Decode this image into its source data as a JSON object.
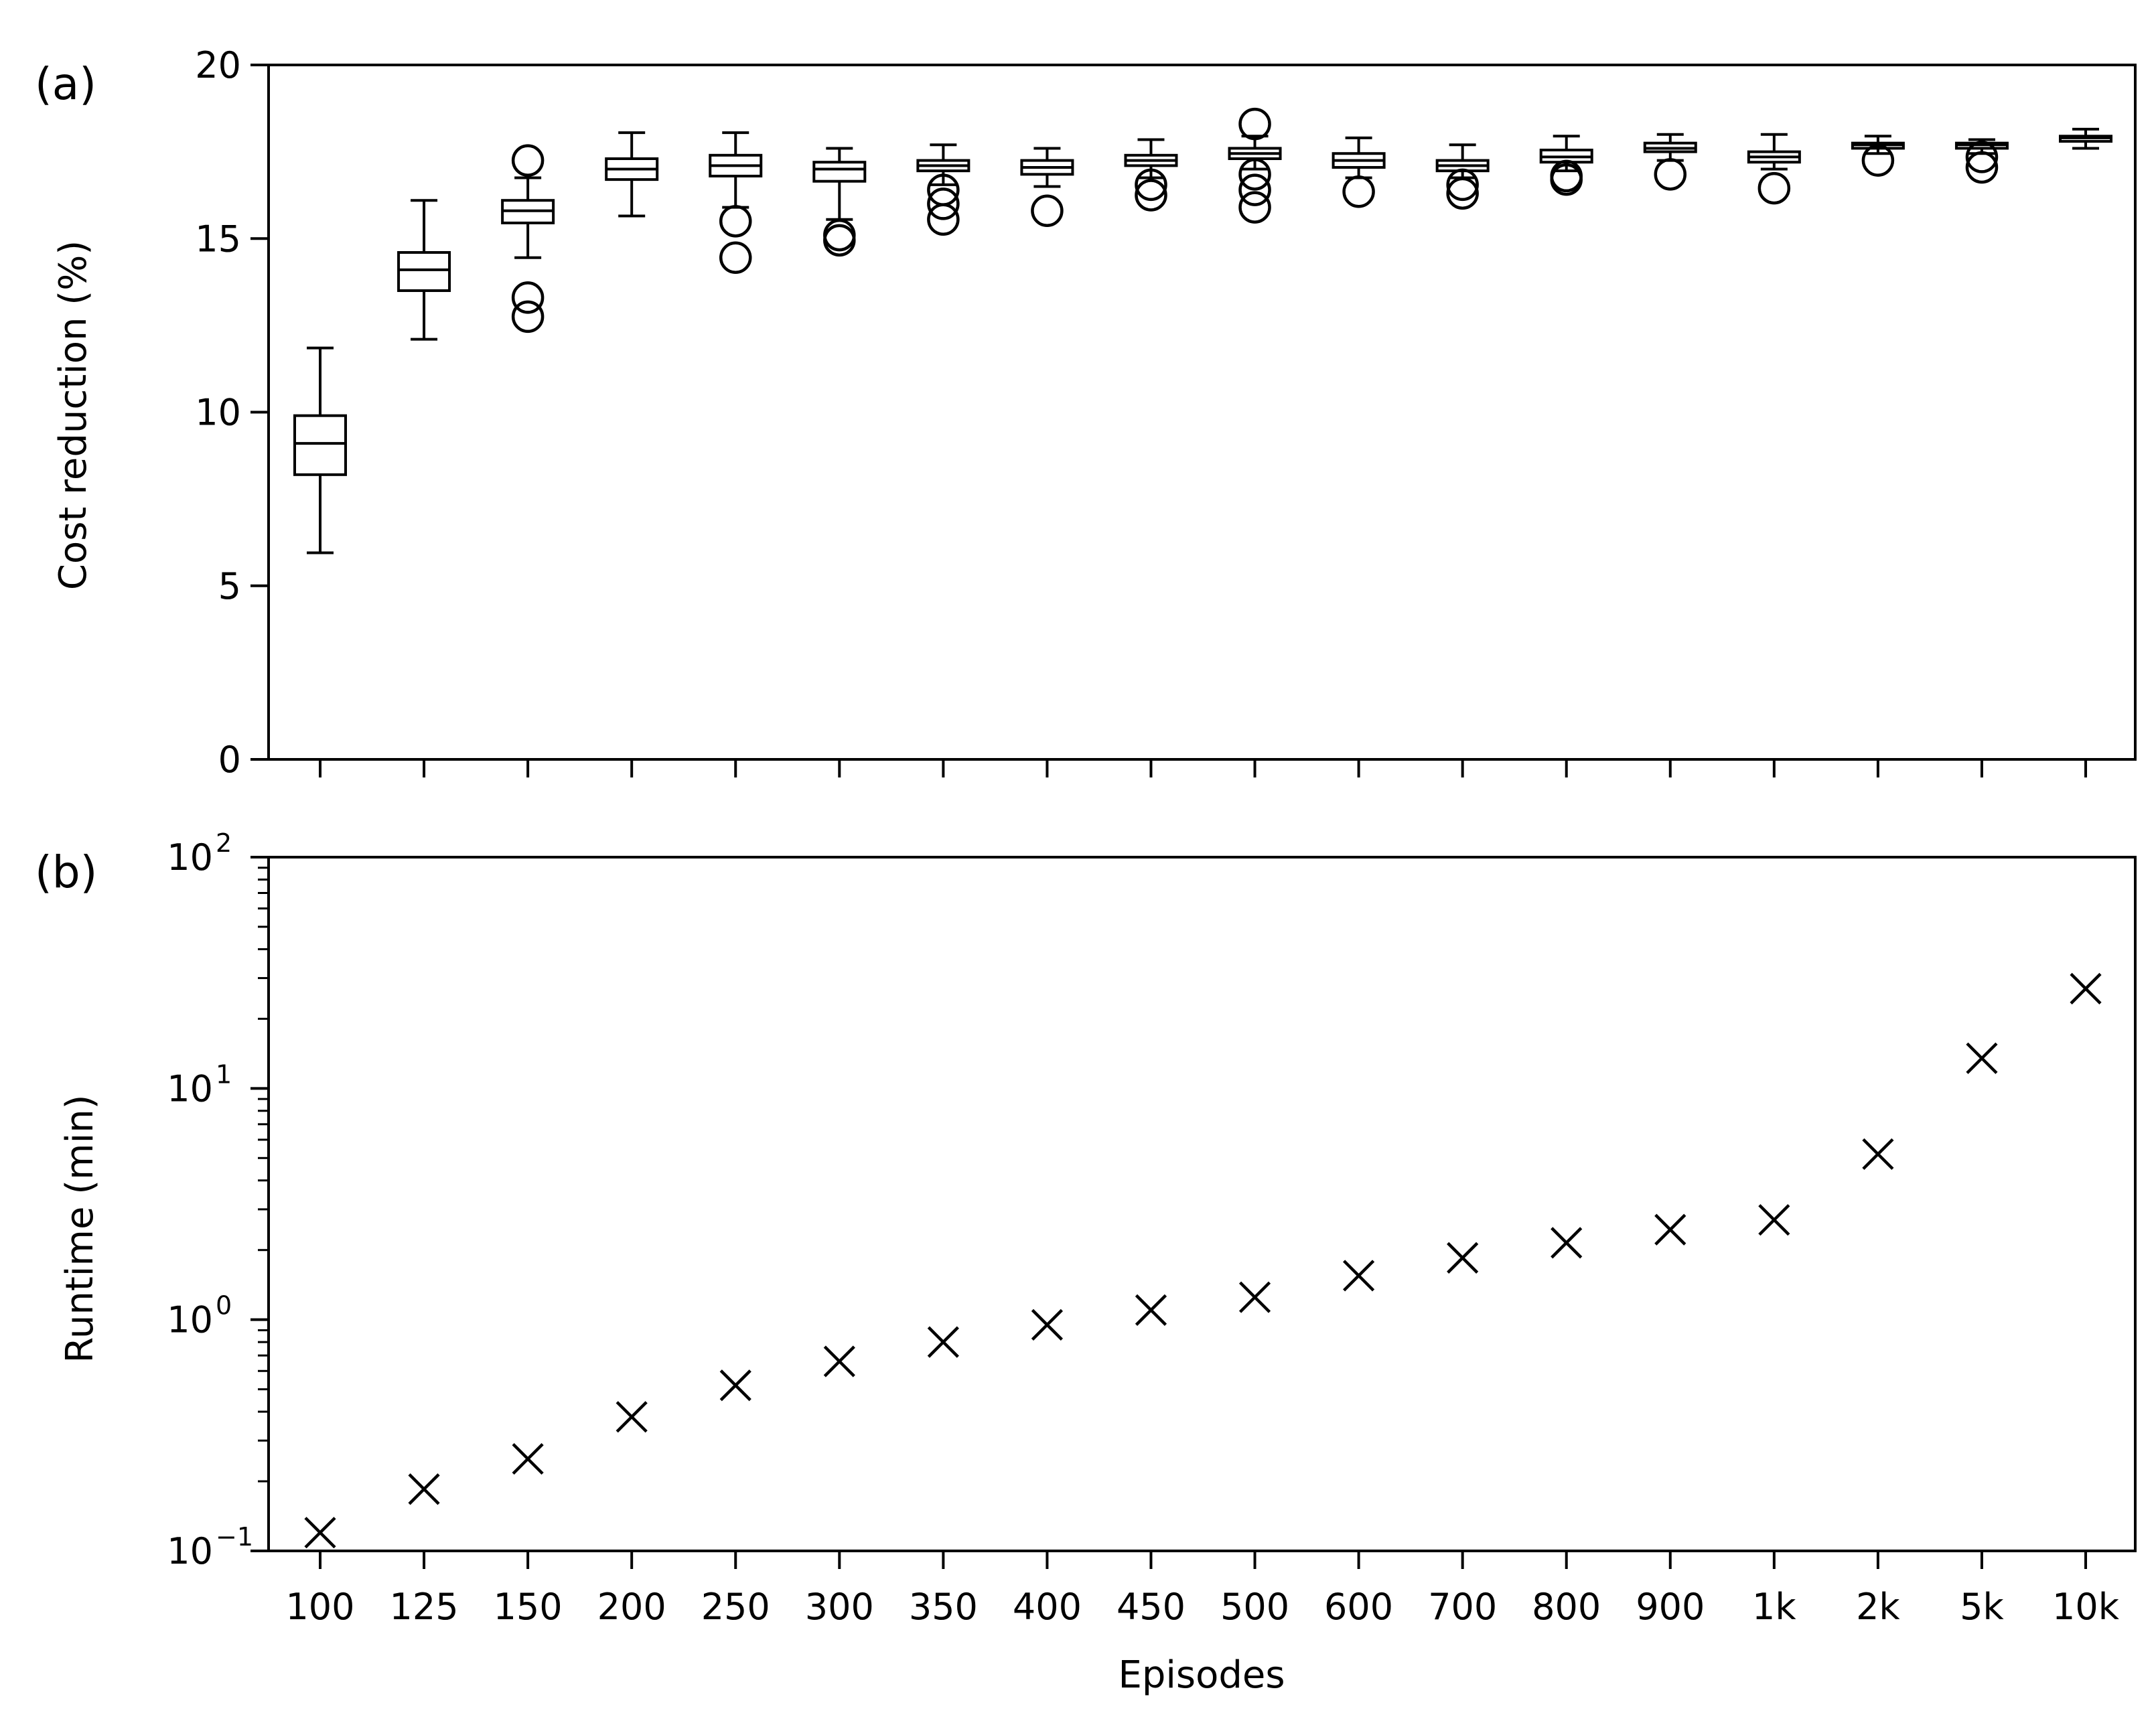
{
  "chart_data": [
    {
      "panel_label": "(a)",
      "type": "box",
      "xlabel": "",
      "ylabel": "Cost reduction (%)",
      "ylim": [
        0,
        20
      ],
      "yticks": [
        0,
        5,
        10,
        15,
        20
      ],
      "categories": [
        "100",
        "125",
        "150",
        "200",
        "250",
        "300",
        "350",
        "400",
        "450",
        "500",
        "600",
        "700",
        "800",
        "900",
        "1k",
        "2k",
        "5k",
        "10k"
      ],
      "boxes": [
        {
          "whislo": 5.95,
          "q1": 8.2,
          "med": 9.1,
          "q3": 9.9,
          "whishi": 11.85,
          "fliers": []
        },
        {
          "whislo": 12.1,
          "q1": 13.5,
          "med": 14.1,
          "q3": 14.6,
          "whishi": 16.1,
          "fliers": []
        },
        {
          "whislo": 14.45,
          "q1": 15.45,
          "med": 15.8,
          "q3": 16.1,
          "whishi": 16.75,
          "fliers": [
            17.25,
            13.3,
            12.75
          ]
        },
        {
          "whislo": 15.65,
          "q1": 16.7,
          "med": 17.0,
          "q3": 17.3,
          "whishi": 18.05,
          "fliers": []
        },
        {
          "whislo": 15.9,
          "q1": 16.8,
          "med": 17.1,
          "q3": 17.4,
          "whishi": 18.05,
          "fliers": [
            15.5,
            14.45
          ]
        },
        {
          "whislo": 15.55,
          "q1": 16.65,
          "med": 17.0,
          "q3": 17.2,
          "whishi": 17.6,
          "fliers": [
            15.1,
            14.95
          ]
        },
        {
          "whislo": 16.55,
          "q1": 16.95,
          "med": 17.1,
          "q3": 17.25,
          "whishi": 17.7,
          "fliers": [
            16.4,
            16.0,
            15.55
          ]
        },
        {
          "whislo": 16.5,
          "q1": 16.85,
          "med": 17.05,
          "q3": 17.25,
          "whishi": 17.6,
          "fliers": [
            15.8
          ]
        },
        {
          "whislo": 16.75,
          "q1": 17.1,
          "med": 17.25,
          "q3": 17.4,
          "whishi": 17.85,
          "fliers": [
            16.55,
            16.25
          ]
        },
        {
          "whislo": 17.0,
          "q1": 17.3,
          "med": 17.45,
          "q3": 17.6,
          "whishi": 17.95,
          "fliers": [
            18.3,
            16.85,
            16.4,
            15.9
          ]
        },
        {
          "whislo": 16.75,
          "q1": 17.05,
          "med": 17.25,
          "q3": 17.45,
          "whishi": 17.9,
          "fliers": [
            16.35
          ]
        },
        {
          "whislo": 16.75,
          "q1": 16.95,
          "med": 17.1,
          "q3": 17.25,
          "whishi": 17.7,
          "fliers": [
            16.55,
            16.3
          ]
        },
        {
          "whislo": 16.95,
          "q1": 17.2,
          "med": 17.35,
          "q3": 17.55,
          "whishi": 17.95,
          "fliers": [
            16.8,
            16.7
          ]
        },
        {
          "whislo": 17.25,
          "q1": 17.5,
          "med": 17.6,
          "q3": 17.75,
          "whishi": 18.0,
          "fliers": [
            16.85
          ]
        },
        {
          "whislo": 17.0,
          "q1": 17.2,
          "med": 17.35,
          "q3": 17.5,
          "whishi": 18.0,
          "fliers": [
            16.45
          ]
        },
        {
          "whislo": 17.45,
          "q1": 17.6,
          "med": 17.7,
          "q3": 17.75,
          "whishi": 17.95,
          "fliers": [
            17.25
          ]
        },
        {
          "whislo": 17.45,
          "q1": 17.6,
          "med": 17.7,
          "q3": 17.75,
          "whishi": 17.85,
          "fliers": [
            17.35,
            17.05
          ]
        },
        {
          "whislo": 17.6,
          "q1": 17.8,
          "med": 17.9,
          "q3": 17.95,
          "whishi": 18.15,
          "fliers": []
        }
      ],
      "grid": false
    },
    {
      "panel_label": "(b)",
      "type": "scatter",
      "marker": "x",
      "xlabel": "Episodes",
      "ylabel": "Runtime (min)",
      "yscale": "log",
      "ylim": [
        0.1,
        100
      ],
      "ytick_base": "10",
      "ytick_exponents": [
        "−1",
        "0",
        "1",
        "2"
      ],
      "categories": [
        "100",
        "125",
        "150",
        "200",
        "250",
        "300",
        "350",
        "400",
        "450",
        "500",
        "600",
        "700",
        "800",
        "900",
        "1k",
        "2k",
        "5k",
        "10k"
      ],
      "values": [
        0.12,
        0.185,
        0.25,
        0.38,
        0.52,
        0.66,
        0.8,
        0.95,
        1.1,
        1.25,
        1.55,
        1.85,
        2.15,
        2.45,
        2.7,
        5.2,
        13.5,
        27.0
      ],
      "grid": false
    }
  ]
}
